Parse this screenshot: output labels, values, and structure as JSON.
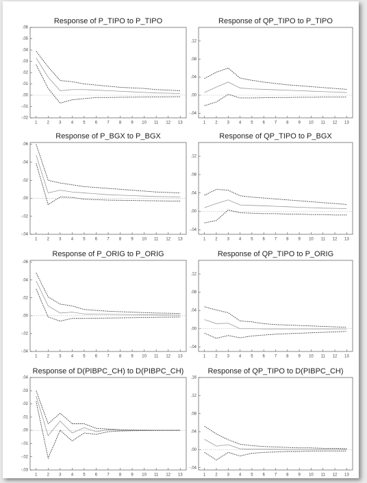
{
  "chart_data": [
    {
      "type": "line",
      "title": "Response of P_TIPO to P_TIPO",
      "x": [
        1,
        2,
        3,
        4,
        5,
        6,
        7,
        8,
        9,
        10,
        11,
        12,
        13
      ],
      "xlim": [
        0.5,
        13.5
      ],
      "xticks": [
        1,
        2,
        3,
        4,
        5,
        6,
        7,
        8,
        9,
        10,
        11,
        12,
        13
      ],
      "ylim": [
        -0.02,
        0.06
      ],
      "yticks": [
        {
          "value": 0.06,
          "label": ".06"
        },
        {
          "value": 0.05,
          "label": ".05"
        },
        {
          "value": 0.04,
          "label": ".04"
        },
        {
          "value": 0.03,
          "label": ".03"
        },
        {
          "value": 0.02,
          "label": ".02"
        },
        {
          "value": 0.01,
          "label": ".01"
        },
        {
          "value": 0,
          "label": ".00"
        },
        {
          "value": -0.01,
          "label": "-.01"
        },
        {
          "value": -0.02,
          "label": "-.02"
        }
      ],
      "series": [
        {
          "color": "#333333",
          "style": "dotted",
          "values": [
            0.039,
            0.025,
            0.013,
            0.012,
            0.01,
            0.009,
            0.008,
            0.007,
            0.0065,
            0.006,
            0.005,
            0.0045,
            0.004
          ]
        },
        {
          "color": "#999999",
          "style": "solid",
          "values": [
            0.033,
            0.016,
            0.004,
            0.005,
            0.005,
            0.0045,
            0.004,
            0.0035,
            0.003,
            0.0025,
            0.002,
            0.0018,
            0.0015
          ]
        },
        {
          "color": "#333333",
          "style": "dotted",
          "values": [
            0.027,
            0.006,
            -0.007,
            -0.004,
            -0.003,
            -0.002,
            -0.002,
            -0.0018,
            -0.0017,
            -0.0016,
            -0.0015,
            -0.0014,
            -0.0013
          ]
        }
      ]
    },
    {
      "type": "line",
      "title": "Response of QP_TIPO to P_TIPO",
      "x": [
        1,
        2,
        3,
        4,
        5,
        6,
        7,
        8,
        9,
        10,
        11,
        12,
        13
      ],
      "xlim": [
        0.5,
        13.5
      ],
      "xticks": [
        1,
        2,
        3,
        4,
        5,
        6,
        7,
        8,
        9,
        10,
        11,
        12,
        13
      ],
      "ylim": [
        -0.05,
        0.15
      ],
      "yticks": [
        {
          "value": 0.12,
          "label": ".12"
        },
        {
          "value": 0.08,
          "label": ".08"
        },
        {
          "value": 0.04,
          "label": ".04"
        },
        {
          "value": 0,
          "label": ".00"
        },
        {
          "value": -0.04,
          "label": "-.04"
        }
      ],
      "series": [
        {
          "color": "#333333",
          "style": "dotted",
          "values": [
            0.037,
            0.051,
            0.06,
            0.038,
            0.033,
            0.029,
            0.026,
            0.023,
            0.021,
            0.019,
            0.017,
            0.015,
            0.013
          ]
        },
        {
          "color": "#999999",
          "style": "solid",
          "values": [
            0.006,
            0.018,
            0.029,
            0.016,
            0.014,
            0.013,
            0.012,
            0.011,
            0.01,
            0.009,
            0.008,
            0.007,
            0.006
          ]
        },
        {
          "color": "#333333",
          "style": "dotted",
          "values": [
            -0.023,
            -0.015,
            0.002,
            -0.006,
            -0.006,
            -0.0055,
            -0.005,
            -0.005,
            -0.0045,
            -0.0045,
            -0.004,
            -0.004,
            -0.004
          ]
        }
      ]
    },
    {
      "type": "line",
      "title": "Response of P_BGX to P_BGX",
      "x": [
        1,
        2,
        3,
        4,
        5,
        6,
        7,
        8,
        9,
        10,
        11,
        12,
        13
      ],
      "xlim": [
        0.5,
        13.5
      ],
      "xticks": [
        1,
        2,
        3,
        4,
        5,
        6,
        7,
        8,
        9,
        10,
        11,
        12,
        13
      ],
      "ylim": [
        -0.04,
        0.062
      ],
      "yticks": [
        {
          "value": 0.06,
          "label": ".06"
        },
        {
          "value": 0.04,
          "label": ".04"
        },
        {
          "value": 0.02,
          "label": ".02"
        },
        {
          "value": 0,
          "label": ".00"
        },
        {
          "value": -0.02,
          "label": "-.02"
        },
        {
          "value": -0.04,
          "label": "-.04"
        }
      ],
      "series": [
        {
          "color": "#333333",
          "style": "dotted",
          "values": [
            0.06,
            0.02,
            0.017,
            0.015,
            0.013,
            0.012,
            0.011,
            0.01,
            0.009,
            0.008,
            0.007,
            0.0065,
            0.006
          ]
        },
        {
          "color": "#999999",
          "style": "solid",
          "values": [
            0.048,
            0.006,
            0.009,
            0.007,
            0.006,
            0.005,
            0.004,
            0.0035,
            0.003,
            0.0025,
            0.002,
            0.0018,
            0.0015
          ]
        },
        {
          "color": "#333333",
          "style": "dotted",
          "values": [
            0.039,
            -0.007,
            0.0015,
            0.001,
            -0.001,
            -0.0015,
            -0.002,
            -0.0022,
            -0.0024,
            -0.0026,
            -0.0028,
            -0.003,
            -0.003
          ]
        }
      ]
    },
    {
      "type": "line",
      "title": "Response of QP_TIPO to P_BGX",
      "x": [
        1,
        2,
        3,
        4,
        5,
        6,
        7,
        8,
        9,
        10,
        11,
        12,
        13
      ],
      "xlim": [
        0.5,
        13.5
      ],
      "xticks": [
        1,
        2,
        3,
        4,
        5,
        6,
        7,
        8,
        9,
        10,
        11,
        12,
        13
      ],
      "ylim": [
        -0.05,
        0.15
      ],
      "yticks": [
        {
          "value": 0.12,
          "label": ".12"
        },
        {
          "value": 0.08,
          "label": ".08"
        },
        {
          "value": 0.04,
          "label": ".04"
        },
        {
          "value": 0,
          "label": ".00"
        },
        {
          "value": -0.04,
          "label": "-.04"
        }
      ],
      "series": [
        {
          "color": "#333333",
          "style": "dotted",
          "values": [
            0.035,
            0.048,
            0.046,
            0.034,
            0.031,
            0.029,
            0.027,
            0.025,
            0.023,
            0.021,
            0.019,
            0.017,
            0.015
          ]
        },
        {
          "color": "#999999",
          "style": "solid",
          "values": [
            0.008,
            0.017,
            0.025,
            0.014,
            0.013,
            0.012,
            0.011,
            0.01,
            0.009,
            0.008,
            0.007,
            0.0065,
            0.006
          ]
        },
        {
          "color": "#333333",
          "style": "dotted",
          "values": [
            -0.025,
            -0.02,
            0.003,
            -0.003,
            -0.004,
            -0.005,
            -0.005,
            -0.006,
            -0.006,
            -0.007,
            -0.007,
            -0.008,
            -0.008
          ]
        }
      ]
    },
    {
      "type": "line",
      "title": "Response of P_ORIG to P_ORIG",
      "x": [
        1,
        2,
        3,
        4,
        5,
        6,
        7,
        8,
        9,
        10,
        11,
        12,
        13
      ],
      "xlim": [
        0.5,
        13.5
      ],
      "xticks": [
        1,
        2,
        3,
        4,
        5,
        6,
        7,
        8,
        9,
        10,
        11,
        12,
        13
      ],
      "ylim": [
        -0.04,
        0.062
      ],
      "yticks": [
        {
          "value": 0.06,
          "label": ".06"
        },
        {
          "value": 0.04,
          "label": ".04"
        },
        {
          "value": 0.02,
          "label": ".02"
        },
        {
          "value": 0,
          "label": ".00"
        },
        {
          "value": -0.02,
          "label": "-.02"
        },
        {
          "value": -0.04,
          "label": "-.04"
        }
      ],
      "series": [
        {
          "color": "#333333",
          "style": "dotted",
          "values": [
            0.048,
            0.021,
            0.013,
            0.011,
            0.007,
            0.006,
            0.005,
            0.0045,
            0.004,
            0.0035,
            0.003,
            0.0028,
            0.0025
          ]
        },
        {
          "color": "#999999",
          "style": "solid",
          "values": [
            0.039,
            0.011,
            0.003,
            0.004,
            0.002,
            0.0018,
            0.0016,
            0.0014,
            0.0012,
            0.001,
            0.0009,
            0.0008,
            0.0007
          ]
        },
        {
          "color": "#333333",
          "style": "dotted",
          "values": [
            0.03,
            -0.0015,
            -0.006,
            -0.003,
            -0.003,
            -0.0028,
            -0.0026,
            -0.0024,
            -0.0022,
            -0.002,
            -0.0018,
            -0.0016,
            -0.0015
          ]
        }
      ]
    },
    {
      "type": "line",
      "title": "Response of QP_TIPO to P_ORIG",
      "x": [
        1,
        2,
        3,
        4,
        5,
        6,
        7,
        8,
        9,
        10,
        11,
        12,
        13
      ],
      "xlim": [
        0.5,
        13.5
      ],
      "xticks": [
        1,
        2,
        3,
        4,
        5,
        6,
        7,
        8,
        9,
        10,
        11,
        12,
        13
      ],
      "ylim": [
        -0.05,
        0.15
      ],
      "yticks": [
        {
          "value": 0.12,
          "label": ".12"
        },
        {
          "value": 0.08,
          "label": ".08"
        },
        {
          "value": 0.04,
          "label": ".04"
        },
        {
          "value": 0,
          "label": ".00"
        },
        {
          "value": -0.04,
          "label": "-.04"
        }
      ],
      "series": [
        {
          "color": "#333333",
          "style": "dotted",
          "values": [
            0.048,
            0.041,
            0.035,
            0.017,
            0.015,
            0.011,
            0.009,
            0.008,
            0.007,
            0.006,
            0.005,
            0.004,
            0.003
          ]
        },
        {
          "color": "#999999",
          "style": "solid",
          "values": [
            0.02,
            0.011,
            0.012,
            0.0,
            0.0,
            -0.0005,
            -0.0005,
            -0.0005,
            -0.0005,
            -0.0005,
            -0.0005,
            -0.0005,
            -0.0005
          ]
        },
        {
          "color": "#333333",
          "style": "dotted",
          "values": [
            -0.01,
            -0.021,
            -0.015,
            -0.02,
            -0.016,
            -0.014,
            -0.012,
            -0.011,
            -0.01,
            -0.009,
            -0.008,
            -0.007,
            -0.006
          ]
        }
      ]
    },
    {
      "type": "line",
      "title": "Response of D(PIBPC_CH) to D(PIBPC_CH)",
      "x": [
        1,
        2,
        3,
        4,
        5,
        6,
        7,
        8,
        9,
        10,
        11,
        12,
        13
      ],
      "xlim": [
        0.5,
        13.5
      ],
      "xticks": [
        1,
        2,
        3,
        4,
        5,
        6,
        7,
        8,
        9,
        10,
        11,
        12,
        13
      ],
      "ylim": [
        -0.03,
        0.04
      ],
      "yticks": [
        {
          "value": 0.04,
          "label": ".04"
        },
        {
          "value": 0.03,
          "label": ".03"
        },
        {
          "value": 0.02,
          "label": ".02"
        },
        {
          "value": 0.01,
          "label": ".01"
        },
        {
          "value": 0,
          "label": ".00"
        },
        {
          "value": -0.01,
          "label": "-.01"
        },
        {
          "value": -0.02,
          "label": "-.02"
        },
        {
          "value": -0.03,
          "label": "-.03"
        }
      ],
      "series": [
        {
          "color": "#333333",
          "style": "dotted",
          "values": [
            0.03,
            0.005,
            0.013,
            0.005,
            0.005,
            0.0015,
            0.001,
            0.0005,
            0.0003,
            0.0002,
            0.0001,
            0.0001,
            0.0001
          ]
        },
        {
          "color": "#999999",
          "style": "solid",
          "values": [
            0.026,
            -0.004,
            0.007,
            -0.002,
            0.002,
            -0.001,
            0.0005,
            0,
            0,
            0,
            0,
            0,
            0
          ]
        },
        {
          "color": "#333333",
          "style": "dotted",
          "values": [
            0.022,
            -0.021,
            0.0,
            -0.008,
            -0.002,
            -0.003,
            -0.001,
            -0.0005,
            -0.0003,
            -0.0002,
            -0.0001,
            -0.0001,
            -0.0001
          ]
        }
      ]
    },
    {
      "type": "line",
      "title": "Response of QP_TIPO to D(PIBPC_CH)",
      "x": [
        1,
        2,
        3,
        4,
        5,
        6,
        7,
        8,
        9,
        10,
        11,
        12,
        13
      ],
      "xlim": [
        0.5,
        13.5
      ],
      "xticks": [
        1,
        2,
        3,
        4,
        5,
        6,
        7,
        8,
        9,
        10,
        11,
        12,
        13
      ],
      "ylim": [
        -0.045,
        0.16
      ],
      "yticks": [
        {
          "value": 0.16,
          "label": ".16"
        },
        {
          "value": 0.12,
          "label": ".12"
        },
        {
          "value": 0.08,
          "label": ".08"
        },
        {
          "value": 0.04,
          "label": ".04"
        },
        {
          "value": 0,
          "label": ".00"
        },
        {
          "value": -0.04,
          "label": "-.04"
        }
      ],
      "series": [
        {
          "color": "#333333",
          "style": "dotted",
          "values": [
            0.052,
            0.035,
            0.022,
            0.012,
            0.009,
            0.007,
            0.006,
            0.005,
            0.004,
            0.004,
            0.003,
            0.003,
            0.002
          ]
        },
        {
          "color": "#999999",
          "style": "solid",
          "values": [
            0.023,
            0.008,
            0.011,
            0.002,
            0.001,
            0.001,
            0.001,
            0.0005,
            0.0005,
            0.0005,
            0.0005,
            0.0005,
            0.0005
          ]
        },
        {
          "color": "#333333",
          "style": "dotted",
          "values": [
            -0.006,
            -0.023,
            -0.006,
            -0.014,
            -0.008,
            -0.006,
            -0.005,
            -0.004,
            -0.004,
            -0.003,
            -0.003,
            -0.003,
            -0.003
          ]
        }
      ]
    }
  ]
}
